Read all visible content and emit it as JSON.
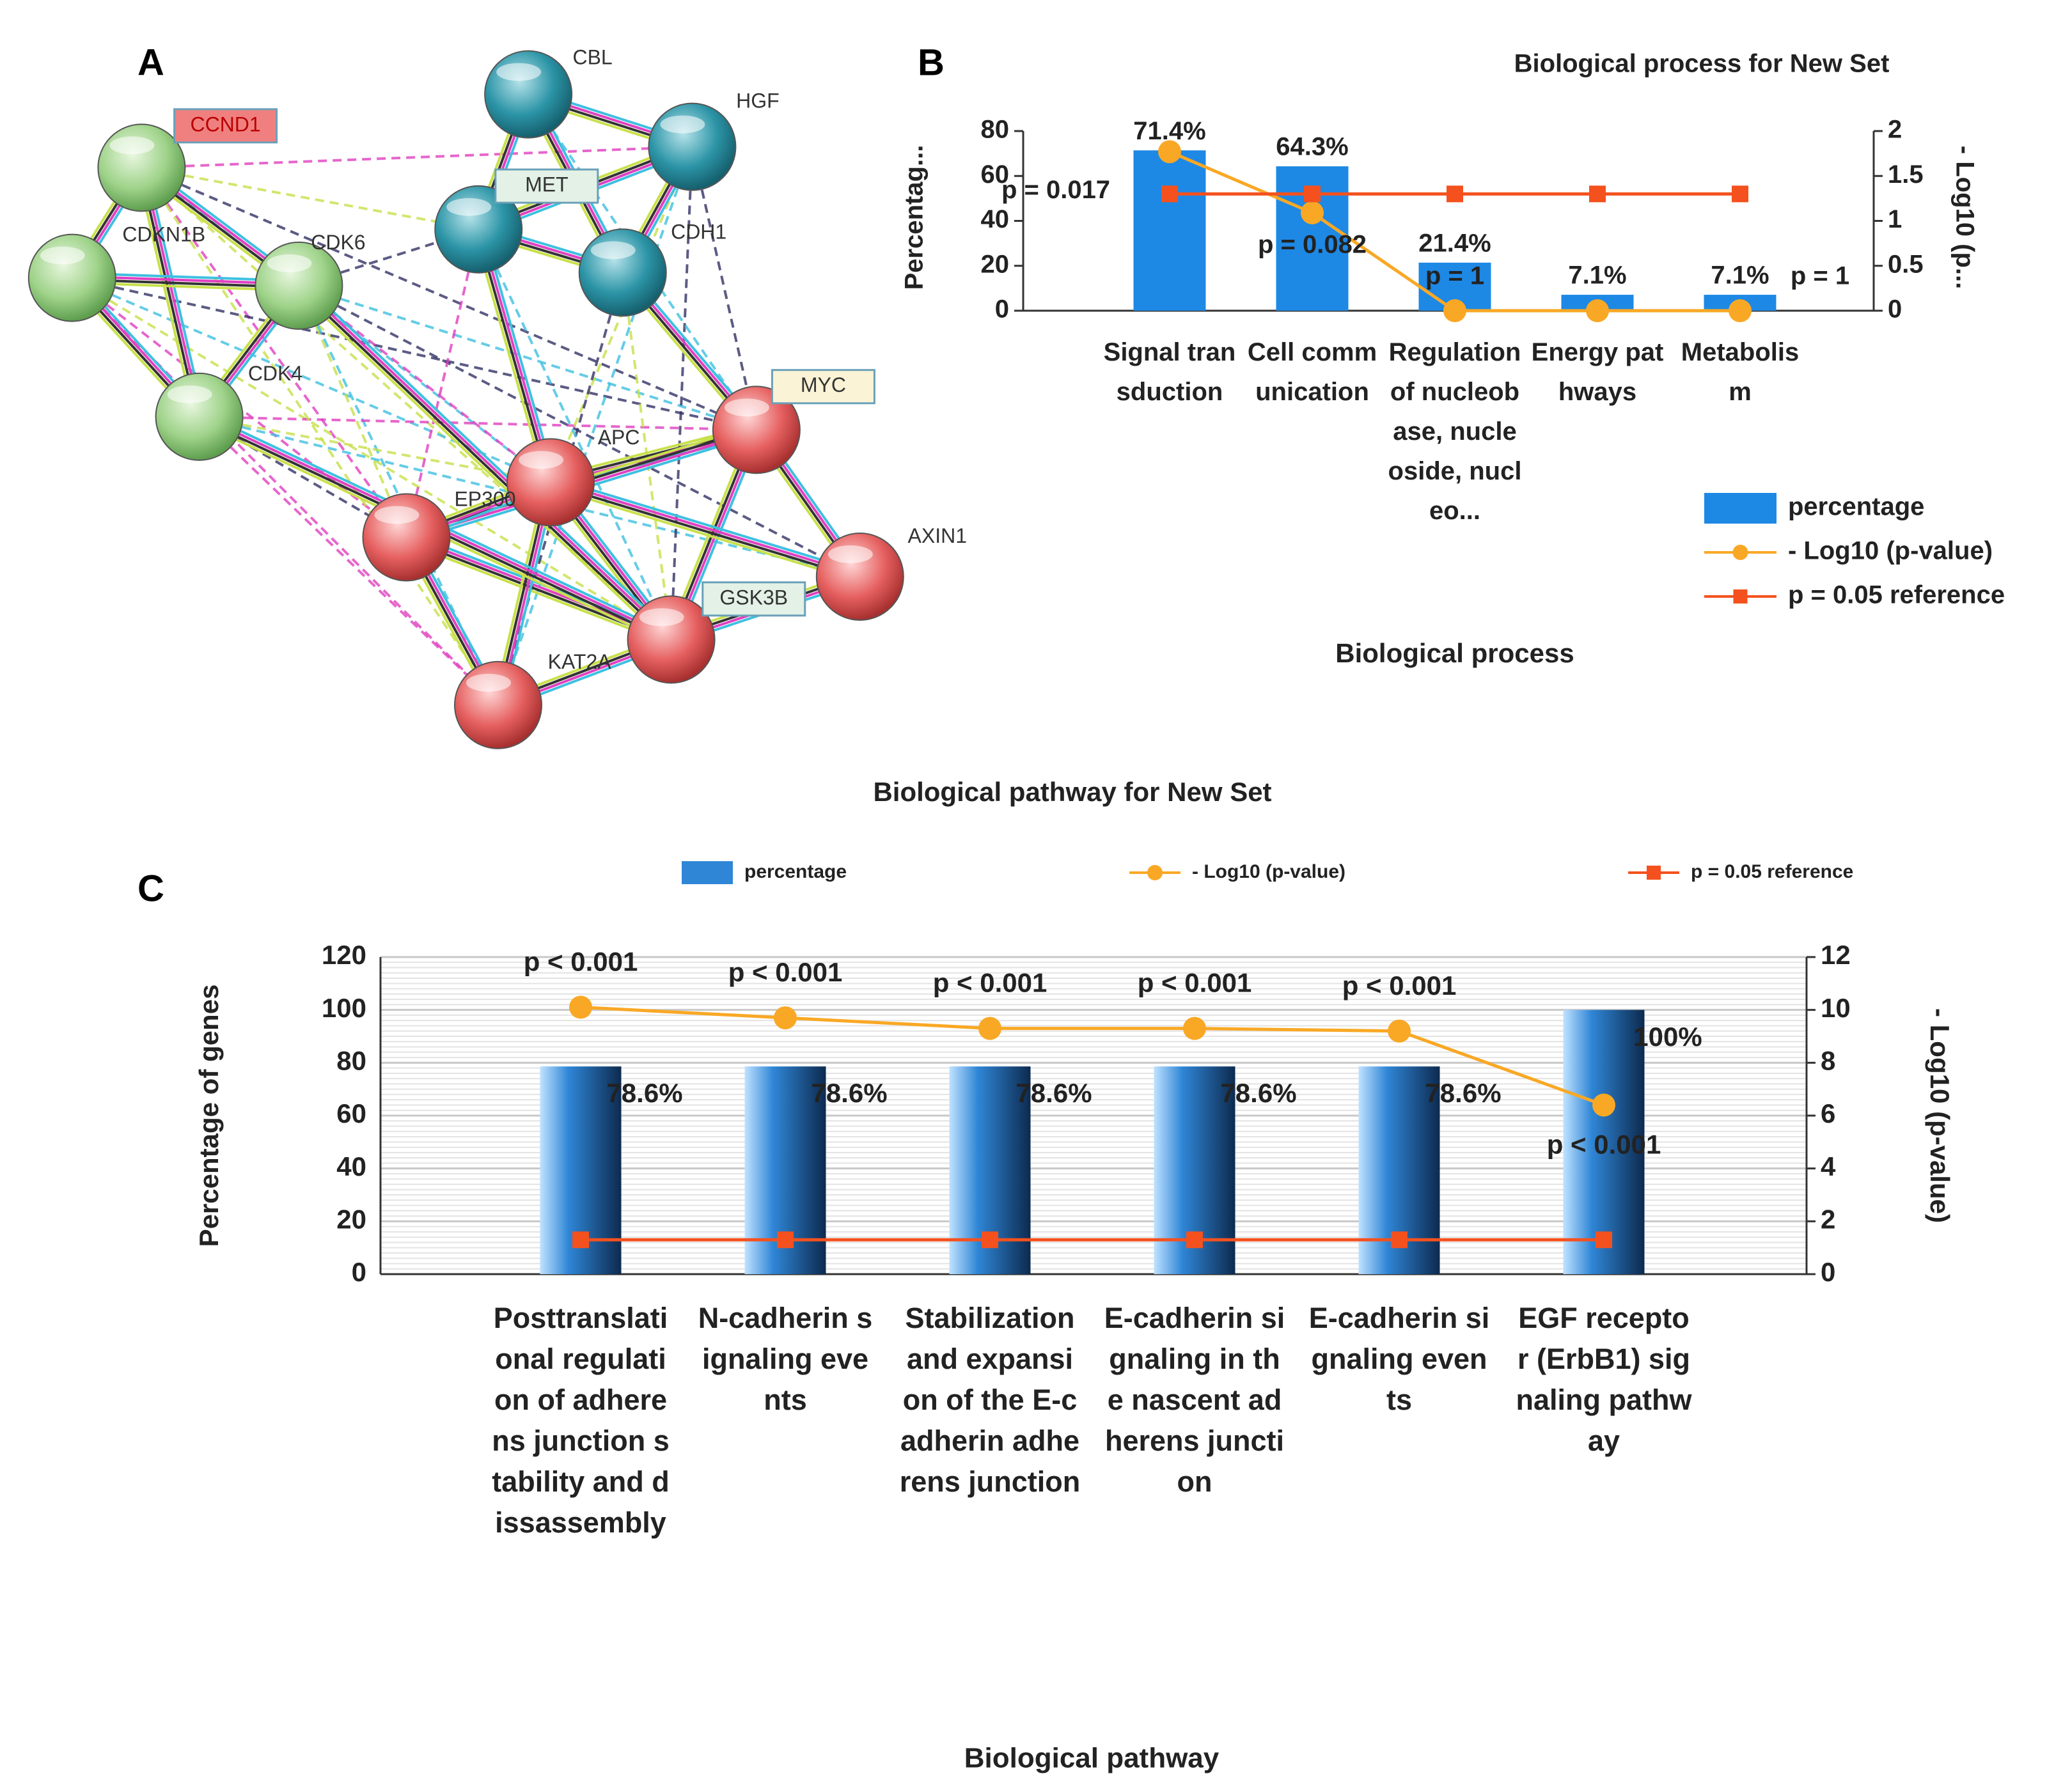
{
  "panel_labels": [
    "A",
    "B",
    "C"
  ],
  "network": {
    "nodes": [
      {
        "label": "CCND1"
      },
      {
        "label": "CDKN1B"
      },
      {
        "label": "CDK6"
      },
      {
        "label": "CDK4"
      },
      {
        "label": "CBL"
      },
      {
        "label": "HGF"
      },
      {
        "label": "MET"
      },
      {
        "label": "CDH1"
      },
      {
        "label": "MYC"
      },
      {
        "label": "APC"
      },
      {
        "label": "EP300"
      },
      {
        "label": "AXIN1"
      },
      {
        "label": "GSK3B"
      },
      {
        "label": "KAT2A"
      }
    ]
  },
  "chart_data": [
    {
      "type": "bar",
      "title": "Biological process for New Set",
      "x_label": "Biological process",
      "y_label": "Percentag...",
      "y2_label": "- Log10 (p...",
      "categories": [
        "Signal transduction",
        "Cell communication",
        "Regulation of nucleobase, nucleoside, nucleo...",
        "Energy pathways",
        "Metabolism"
      ],
      "series": [
        {
          "name": "percentage",
          "type": "bar",
          "color": "#1e88e5",
          "values": [
            71.4,
            64.3,
            21.4,
            7.1,
            7.1
          ],
          "value_labels": [
            "71.4%",
            "64.3%",
            "21.4%",
            "7.1%",
            "7.1%"
          ]
        },
        {
          "name": "- Log10 (p-value)",
          "type": "line",
          "axis": "y2",
          "marker": "circle",
          "color": "#f9a825",
          "values": [
            1.77,
            1.09,
            0,
            0,
            0
          ],
          "value_labels": [
            "p = 0.017",
            "p = 0.082",
            "p = 1",
            null,
            "p = 1"
          ]
        },
        {
          "name": "p = 0.05 reference",
          "type": "line",
          "axis": "y2",
          "marker": "square",
          "color": "#f4511e",
          "values": [
            1.3,
            1.3,
            1.3,
            1.3,
            1.3
          ]
        }
      ],
      "ylim": [
        0,
        80
      ],
      "yticks": [
        0,
        20,
        40,
        60,
        80
      ],
      "y2lim": [
        0,
        2
      ],
      "y2ticks": [
        0,
        0.5,
        1,
        1.5,
        2
      ],
      "grid": false,
      "legend": "bottom-right"
    },
    {
      "type": "bar",
      "title": "Biological pathway for New Set",
      "x_label": "Biological pathway",
      "y_label": "Percentage of genes",
      "y2_label": "- Log10 (p-value)",
      "categories": [
        "Posttranslational regulation of adherens junction stability and dissassembly",
        "N-cadherin signaling events",
        "Stabilization and expansion of the E-cadherin adherens junction",
        "E-cadherin signaling in the nascent adherens junction",
        "E-cadherin signaling events",
        "EGF receptor (ErbB1) signaling pathway"
      ],
      "series": [
        {
          "name": "percentage",
          "type": "bar",
          "color": "#2f86d6",
          "values": [
            78.6,
            78.6,
            78.6,
            78.6,
            78.6,
            100
          ],
          "value_labels": [
            "78.6%",
            "78.6%",
            "78.6%",
            "78.6%",
            "78.6%",
            "100%"
          ]
        },
        {
          "name": "- Log10 (p-value)",
          "type": "line",
          "axis": "y2",
          "marker": "circle",
          "color": "#f9a825",
          "values": [
            10.1,
            9.7,
            9.3,
            9.3,
            9.2,
            6.4
          ],
          "value_labels": [
            "p < 0.001",
            "p < 0.001",
            "p < 0.001",
            "p < 0.001",
            "p < 0.001",
            "p < 0.001"
          ]
        },
        {
          "name": "p = 0.05 reference",
          "type": "line",
          "axis": "y2",
          "marker": "square",
          "color": "#f4511e",
          "values": [
            1.3,
            1.3,
            1.3,
            1.3,
            1.3,
            1.3
          ]
        }
      ],
      "ylim": [
        0,
        120
      ],
      "yticks": [
        0,
        20,
        40,
        60,
        80,
        100,
        120
      ],
      "y2lim": [
        0,
        12
      ],
      "y2ticks": [
        0,
        2,
        4,
        6,
        8,
        10,
        12
      ],
      "grid": true,
      "legend": "top"
    }
  ]
}
